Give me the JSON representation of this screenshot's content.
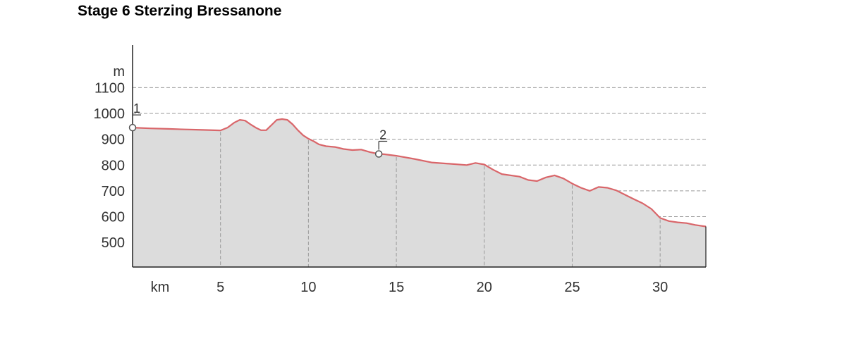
{
  "title": "Stage 6 Sterzing Bressanone",
  "chart_data": {
    "type": "area",
    "ylabel": "m",
    "xlabel": "km",
    "xlim": [
      0,
      32.6
    ],
    "ylim": [
      405,
      1180
    ],
    "yticks": [
      500,
      600,
      700,
      800,
      900,
      1000,
      1100
    ],
    "xticks": [
      5,
      10,
      15,
      20,
      25,
      30
    ],
    "grid": true,
    "line_color": "#d9666a",
    "fill_color": "#dcdcdc",
    "series": [
      {
        "x": [
          0,
          1,
          2,
          3,
          4,
          5,
          5.4,
          5.8,
          6.1,
          6.4,
          6.7,
          7.0,
          7.3,
          7.6,
          7.9,
          8.2,
          8.5,
          8.8,
          9.1,
          9.4,
          9.7,
          10.0,
          10.3,
          10.6,
          11.0,
          11.5,
          12.0,
          12.5,
          13.0,
          13.5,
          14.0,
          14.3,
          15.0,
          16.0,
          17.0,
          18.0,
          19.0,
          19.5,
          20.0,
          20.5,
          21.0,
          22.0,
          22.5,
          23.0,
          23.5,
          24.0,
          24.5,
          25.0,
          25.5,
          26.0,
          26.5,
          27.0,
          27.5,
          28.0,
          28.5,
          29.0,
          29.5,
          30.0,
          30.5,
          31.0,
          31.5,
          32.0,
          32.6
        ],
        "y": [
          945,
          942,
          940,
          938,
          936,
          934,
          945,
          965,
          975,
          972,
          958,
          945,
          935,
          935,
          955,
          975,
          978,
          975,
          958,
          935,
          915,
          902,
          892,
          880,
          873,
          870,
          862,
          858,
          860,
          850,
          843,
          842,
          836,
          824,
          810,
          805,
          800,
          808,
          802,
          782,
          765,
          755,
          742,
          738,
          752,
          760,
          748,
          728,
          712,
          700,
          715,
          712,
          702,
          685,
          668,
          652,
          630,
          595,
          583,
          578,
          575,
          568,
          562
        ]
      }
    ],
    "waypoints": [
      {
        "label": "1",
        "x": 0,
        "y": 945
      },
      {
        "label": "2",
        "x": 14.0,
        "y": 843
      }
    ]
  }
}
